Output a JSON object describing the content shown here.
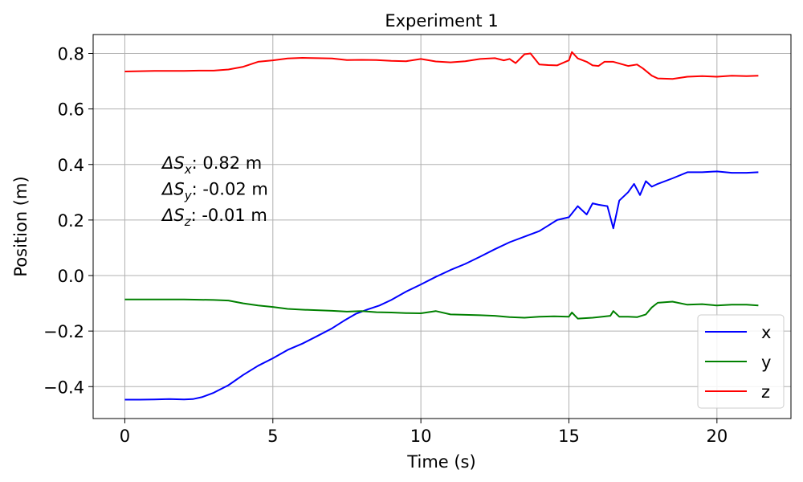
{
  "chart_data": {
    "type": "line",
    "title": "Experiment 1",
    "xlabel": "Time (s)",
    "ylabel": "Position (m)",
    "xlim": [
      -1.07,
      22.5
    ],
    "ylim": [
      -0.515,
      0.868
    ],
    "xticks": [
      0,
      5,
      10,
      15,
      20
    ],
    "xtick_labels": [
      "0",
      "5",
      "10",
      "15",
      "20"
    ],
    "yticks": [
      -0.4,
      -0.2,
      0.0,
      0.2,
      0.4,
      0.6,
      0.8
    ],
    "ytick_labels": [
      "−0.4",
      "−0.2",
      "0.0",
      "0.2",
      "0.4",
      "0.6",
      "0.8"
    ],
    "grid": true,
    "legend_position": "bottom-right",
    "annotations": [
      {
        "symbol": "ΔS",
        "sub": "x",
        "text": ": 0.82 m"
      },
      {
        "symbol": "ΔS",
        "sub": "y",
        "text": ": -0.02 m"
      },
      {
        "symbol": "ΔS",
        "sub": "z",
        "text": ": -0.01 m"
      }
    ],
    "series": [
      {
        "name": "x",
        "color": "#0000ff",
        "points": [
          [
            0,
            -0.447
          ],
          [
            0.5,
            -0.447
          ],
          [
            1,
            -0.446
          ],
          [
            1.5,
            -0.445
          ],
          [
            2,
            -0.446
          ],
          [
            2.3,
            -0.445
          ],
          [
            2.6,
            -0.438
          ],
          [
            3,
            -0.422
          ],
          [
            3.5,
            -0.395
          ],
          [
            4,
            -0.358
          ],
          [
            4.5,
            -0.325
          ],
          [
            5,
            -0.298
          ],
          [
            5.5,
            -0.268
          ],
          [
            6,
            -0.245
          ],
          [
            6.5,
            -0.218
          ],
          [
            7,
            -0.19
          ],
          [
            7.4,
            -0.163
          ],
          [
            7.8,
            -0.138
          ],
          [
            8.2,
            -0.122
          ],
          [
            8.6,
            -0.108
          ],
          [
            9,
            -0.088
          ],
          [
            9.5,
            -0.058
          ],
          [
            10,
            -0.032
          ],
          [
            10.5,
            -0.005
          ],
          [
            11,
            0.02
          ],
          [
            11.5,
            0.042
          ],
          [
            12,
            0.068
          ],
          [
            12.5,
            0.095
          ],
          [
            13,
            0.12
          ],
          [
            13.5,
            0.14
          ],
          [
            14,
            0.16
          ],
          [
            14.3,
            0.18
          ],
          [
            14.6,
            0.2
          ],
          [
            15,
            0.21
          ],
          [
            15.3,
            0.25
          ],
          [
            15.6,
            0.22
          ],
          [
            15.8,
            0.26
          ],
          [
            16,
            0.255
          ],
          [
            16.3,
            0.25
          ],
          [
            16.5,
            0.17
          ],
          [
            16.7,
            0.27
          ],
          [
            17,
            0.3
          ],
          [
            17.2,
            0.33
          ],
          [
            17.4,
            0.29
          ],
          [
            17.6,
            0.34
          ],
          [
            17.8,
            0.32
          ],
          [
            18,
            0.33
          ],
          [
            18.5,
            0.35
          ],
          [
            19,
            0.372
          ],
          [
            19.5,
            0.372
          ],
          [
            20,
            0.375
          ],
          [
            20.5,
            0.37
          ],
          [
            21,
            0.37
          ],
          [
            21.4,
            0.372
          ]
        ]
      },
      {
        "name": "y",
        "color": "#008000",
        "points": [
          [
            0,
            -0.086
          ],
          [
            1,
            -0.086
          ],
          [
            2,
            -0.086
          ],
          [
            3,
            -0.088
          ],
          [
            3.5,
            -0.09
          ],
          [
            4,
            -0.1
          ],
          [
            4.5,
            -0.108
          ],
          [
            5,
            -0.113
          ],
          [
            5.5,
            -0.12
          ],
          [
            6,
            -0.123
          ],
          [
            7,
            -0.127
          ],
          [
            7.5,
            -0.13
          ],
          [
            8,
            -0.128
          ],
          [
            8.5,
            -0.132
          ],
          [
            9,
            -0.133
          ],
          [
            9.5,
            -0.135
          ],
          [
            10,
            -0.136
          ],
          [
            10.5,
            -0.128
          ],
          [
            11,
            -0.14
          ],
          [
            12,
            -0.143
          ],
          [
            12.5,
            -0.145
          ],
          [
            13,
            -0.15
          ],
          [
            13.5,
            -0.152
          ],
          [
            14,
            -0.148
          ],
          [
            14.5,
            -0.147
          ],
          [
            15,
            -0.148
          ],
          [
            15.1,
            -0.133
          ],
          [
            15.3,
            -0.155
          ],
          [
            15.8,
            -0.152
          ],
          [
            16,
            -0.15
          ],
          [
            16.4,
            -0.145
          ],
          [
            16.5,
            -0.128
          ],
          [
            16.7,
            -0.148
          ],
          [
            17,
            -0.148
          ],
          [
            17.3,
            -0.15
          ],
          [
            17.6,
            -0.14
          ],
          [
            17.8,
            -0.115
          ],
          [
            18,
            -0.098
          ],
          [
            18.5,
            -0.094
          ],
          [
            19,
            -0.105
          ],
          [
            19.5,
            -0.103
          ],
          [
            20,
            -0.108
          ],
          [
            20.5,
            -0.105
          ],
          [
            21,
            -0.105
          ],
          [
            21.4,
            -0.108
          ]
        ]
      },
      {
        "name": "z",
        "color": "#ff0000",
        "points": [
          [
            0,
            0.735
          ],
          [
            0.5,
            0.736
          ],
          [
            1,
            0.737
          ],
          [
            1.5,
            0.737
          ],
          [
            2,
            0.737
          ],
          [
            2.5,
            0.738
          ],
          [
            3,
            0.738
          ],
          [
            3.5,
            0.742
          ],
          [
            4,
            0.752
          ],
          [
            4.5,
            0.77
          ],
          [
            5,
            0.775
          ],
          [
            5.5,
            0.782
          ],
          [
            6,
            0.784
          ],
          [
            6.5,
            0.783
          ],
          [
            7,
            0.782
          ],
          [
            7.5,
            0.776
          ],
          [
            8,
            0.777
          ],
          [
            8.5,
            0.776
          ],
          [
            9,
            0.773
          ],
          [
            9.5,
            0.772
          ],
          [
            10,
            0.78
          ],
          [
            10.5,
            0.771
          ],
          [
            11,
            0.768
          ],
          [
            11.5,
            0.772
          ],
          [
            12,
            0.78
          ],
          [
            12.5,
            0.783
          ],
          [
            12.8,
            0.775
          ],
          [
            13,
            0.78
          ],
          [
            13.2,
            0.765
          ],
          [
            13.5,
            0.797
          ],
          [
            13.7,
            0.8
          ],
          [
            14,
            0.76
          ],
          [
            14.3,
            0.758
          ],
          [
            14.6,
            0.757
          ],
          [
            15,
            0.775
          ],
          [
            15.1,
            0.805
          ],
          [
            15.3,
            0.782
          ],
          [
            15.6,
            0.77
          ],
          [
            15.8,
            0.757
          ],
          [
            16,
            0.755
          ],
          [
            16.2,
            0.77
          ],
          [
            16.5,
            0.77
          ],
          [
            17,
            0.755
          ],
          [
            17.3,
            0.76
          ],
          [
            17.5,
            0.746
          ],
          [
            17.8,
            0.72
          ],
          [
            18,
            0.71
          ],
          [
            18.5,
            0.708
          ],
          [
            19,
            0.716
          ],
          [
            19.5,
            0.718
          ],
          [
            20,
            0.716
          ],
          [
            20.5,
            0.72
          ],
          [
            21,
            0.718
          ],
          [
            21.4,
            0.72
          ]
        ]
      }
    ]
  }
}
